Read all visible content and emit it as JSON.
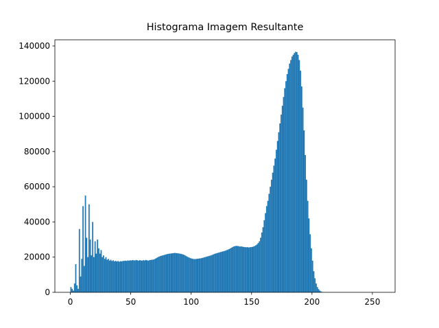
{
  "chart_data": {
    "type": "histogram",
    "title": "Histograma Imagem Resultante",
    "color": "#1f77b4",
    "bins": [
      0,
      1,
      2,
      3,
      4,
      5,
      6,
      7,
      8,
      9,
      10,
      11,
      12,
      13,
      14,
      15,
      16,
      17,
      18,
      19,
      20,
      21,
      22,
      23,
      24,
      25,
      26,
      27,
      28,
      29,
      30,
      31,
      32,
      33,
      34,
      35,
      36,
      37,
      38,
      39,
      40,
      41,
      42,
      43,
      44,
      45,
      46,
      47,
      48,
      49,
      50,
      51,
      52,
      53,
      54,
      55,
      56,
      57,
      58,
      59,
      60,
      61,
      62,
      63,
      64,
      65,
      66,
      67,
      68,
      69,
      70,
      71,
      72,
      73,
      74,
      75,
      76,
      77,
      78,
      79,
      80,
      81,
      82,
      83,
      84,
      85,
      86,
      87,
      88,
      89,
      90,
      91,
      92,
      93,
      94,
      95,
      96,
      97,
      98,
      99,
      100,
      101,
      102,
      103,
      104,
      105,
      106,
      107,
      108,
      109,
      110,
      111,
      112,
      113,
      114,
      115,
      116,
      117,
      118,
      119,
      120,
      121,
      122,
      123,
      124,
      125,
      126,
      127,
      128,
      129,
      130,
      131,
      132,
      133,
      134,
      135,
      136,
      137,
      138,
      139,
      140,
      141,
      142,
      143,
      144,
      145,
      146,
      147,
      148,
      149,
      150,
      151,
      152,
      153,
      154,
      155,
      156,
      157,
      158,
      159,
      160,
      161,
      162,
      163,
      164,
      165,
      166,
      167,
      168,
      169,
      170,
      171,
      172,
      173,
      174,
      175,
      176,
      177,
      178,
      179,
      180,
      181,
      182,
      183,
      184,
      185,
      186,
      187,
      188,
      189,
      190,
      191,
      192,
      193,
      194,
      195,
      196,
      197,
      198,
      199,
      200,
      201,
      202,
      203,
      204,
      205,
      206,
      207,
      208,
      209,
      210,
      211,
      212,
      213,
      214,
      215,
      216,
      217,
      218,
      219,
      220,
      221,
      222,
      223,
      224,
      225,
      226,
      227,
      228,
      229,
      230,
      231,
      232,
      233,
      234,
      235,
      236,
      237,
      238,
      239,
      240,
      241,
      242,
      243,
      244,
      245,
      246,
      247,
      248,
      249,
      250,
      251,
      252,
      253,
      254,
      255,
      256
    ],
    "values": [
      3000,
      2000,
      1000,
      5000,
      16000,
      4000,
      2000,
      36000,
      9000,
      19000,
      49000,
      15000,
      55000,
      31000,
      20000,
      50000,
      30000,
      21000,
      40000,
      20000,
      29000,
      22000,
      30000,
      25000,
      22000,
      24000,
      20000,
      21000,
      19000,
      20000,
      18500,
      19000,
      18000,
      18500,
      17800,
      18200,
      17600,
      17900,
      17500,
      17800,
      17400,
      17700,
      17600,
      17800,
      17900,
      18000,
      17800,
      18100,
      18000,
      18200,
      18100,
      18300,
      18200,
      18100,
      18400,
      18200,
      18000,
      18300,
      18100,
      18000,
      18300,
      18100,
      18400,
      18200,
      18000,
      18300,
      18400,
      18500,
      18600,
      18800,
      19200,
      19600,
      20000,
      20300,
      20600,
      20800,
      21000,
      21200,
      21400,
      21600,
      21800,
      21900,
      22000,
      22100,
      22200,
      22300,
      22400,
      22300,
      22200,
      22100,
      22000,
      21900,
      21700,
      21500,
      21200,
      20800,
      20400,
      20000,
      19700,
      19400,
      19200,
      19000,
      18900,
      18900,
      19000,
      19100,
      19200,
      19300,
      19400,
      19600,
      19800,
      20000,
      20200,
      20400,
      20600,
      20800,
      21000,
      21300,
      21600,
      21900,
      22100,
      22300,
      22500,
      22700,
      22900,
      23100,
      23300,
      23500,
      23700,
      24000,
      24300,
      24600,
      25000,
      25400,
      25800,
      26100,
      26300,
      26400,
      26300,
      26200,
      26000,
      26100,
      25900,
      25800,
      25700,
      25600,
      25700,
      25500,
      25600,
      25700,
      25800,
      26000,
      26300,
      26700,
      27200,
      28000,
      29000,
      31000,
      34000,
      37000,
      41000,
      45000,
      49000,
      52000,
      56000,
      60000,
      64000,
      68000,
      72000,
      76000,
      81000,
      86000,
      91000,
      96000,
      101000,
      106000,
      111000,
      116000,
      120000,
      124000,
      127000,
      130000,
      132000,
      134000,
      135000,
      136000,
      136700,
      136500,
      135000,
      132000,
      126000,
      117000,
      105000,
      92000,
      78000,
      64000,
      52000,
      42000,
      33000,
      25000,
      18000,
      12000,
      8000,
      5000,
      3000,
      1800,
      1000,
      500,
      200,
      100,
      0,
      0,
      0,
      0,
      0,
      0,
      0,
      0,
      0,
      0,
      0,
      0,
      0,
      0,
      0,
      0,
      0,
      0,
      0,
      0,
      0,
      0,
      0,
      0,
      0,
      0,
      0,
      0,
      0,
      0,
      0,
      0,
      0,
      0,
      0,
      0,
      0,
      0,
      0,
      0,
      0,
      0,
      0,
      0,
      0,
      0
    ],
    "xlim": [
      -12.8,
      268.8
    ],
    "xticks": [
      0,
      50,
      100,
      150,
      200,
      250
    ],
    "ylim": [
      0,
      143500
    ],
    "yticks": [
      0,
      20000,
      40000,
      60000,
      80000,
      100000,
      120000,
      140000
    ]
  }
}
